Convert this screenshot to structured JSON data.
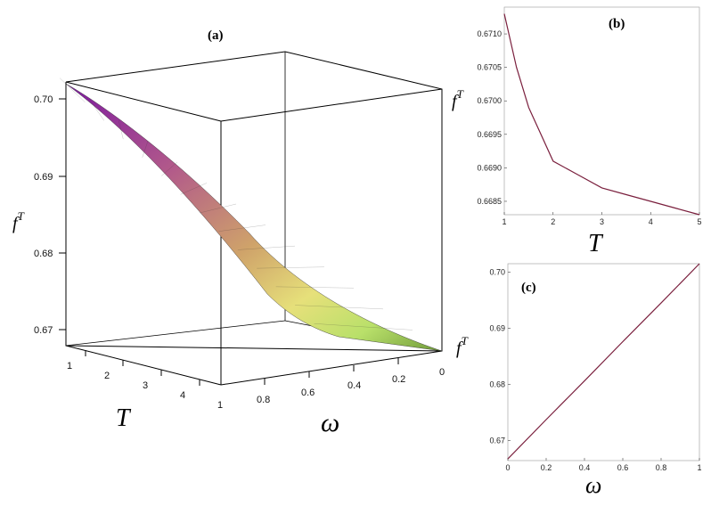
{
  "chart_data": [
    {
      "type": "surface",
      "panel_label": "(a)",
      "zlabel": "f",
      "zlabel_sup": "T",
      "xlabel": "T",
      "ylabel": "ω",
      "x_ticks": [
        "1",
        "2",
        "3",
        "4"
      ],
      "y_ticks": [
        "0.8",
        "0.6",
        "0.4",
        "0.2",
        "0"
      ],
      "z_ticks": [
        "0.70",
        "0.69",
        "0.68",
        "0.67"
      ],
      "extra_tick_1": "1",
      "xlim": [
        1,
        5
      ],
      "ylim": [
        0,
        1
      ],
      "zlim": [
        0.6667,
        0.7015
      ],
      "colormap": [
        "#7d1aa0",
        "#b25a8a",
        "#cfa36a",
        "#e6e07a",
        "#b9e06a",
        "#6f9a3a"
      ],
      "surface": "f = (1 + ω/(T+1)) * 2/3, corner values: (T=1,ω=1)≈0.7015, (T=5,ω=1)≈0.6684, ω=0 plane ≈0.6667"
    },
    {
      "type": "line",
      "panel_label": "(b)",
      "ylabel": "f",
      "ylabel_sup": "T",
      "xlabel": "T",
      "xlim": [
        1,
        5
      ],
      "ylim": [
        0.6683,
        0.6714
      ],
      "x_ticks": [
        "1",
        "2",
        "3",
        "4",
        "5"
      ],
      "y_ticks": [
        "0.6710",
        "0.6705",
        "0.6700",
        "0.6695",
        "0.6690",
        "0.6685"
      ],
      "series": [
        {
          "x": [
            1,
            1.25,
            1.5,
            1.75,
            2,
            2.5,
            3,
            3.5,
            4,
            4.5,
            5
          ],
          "y": [
            0.6713,
            0.6705,
            0.6699,
            0.6695,
            0.6691,
            0.6689,
            0.6687,
            0.6686,
            0.6685,
            0.6684,
            0.6683
          ]
        }
      ],
      "color": "#7a1f3d"
    },
    {
      "type": "line",
      "panel_label": "(c)",
      "ylabel": "f",
      "ylabel_sup": "T",
      "xlabel": "ω",
      "xlim": [
        0,
        1
      ],
      "ylim": [
        0.6664,
        0.7015
      ],
      "x_ticks": [
        "0",
        "0.2",
        "0.4",
        "0.6",
        "0.8",
        "1"
      ],
      "y_ticks": [
        "0.70",
        "0.69",
        "0.68",
        "0.67"
      ],
      "series": [
        {
          "x": [
            0,
            0.2,
            0.4,
            0.6,
            0.8,
            1
          ],
          "y": [
            0.6667,
            0.6737,
            0.6806,
            0.6876,
            0.6945,
            0.7015
          ]
        }
      ],
      "color": "#7a1f3d"
    }
  ]
}
